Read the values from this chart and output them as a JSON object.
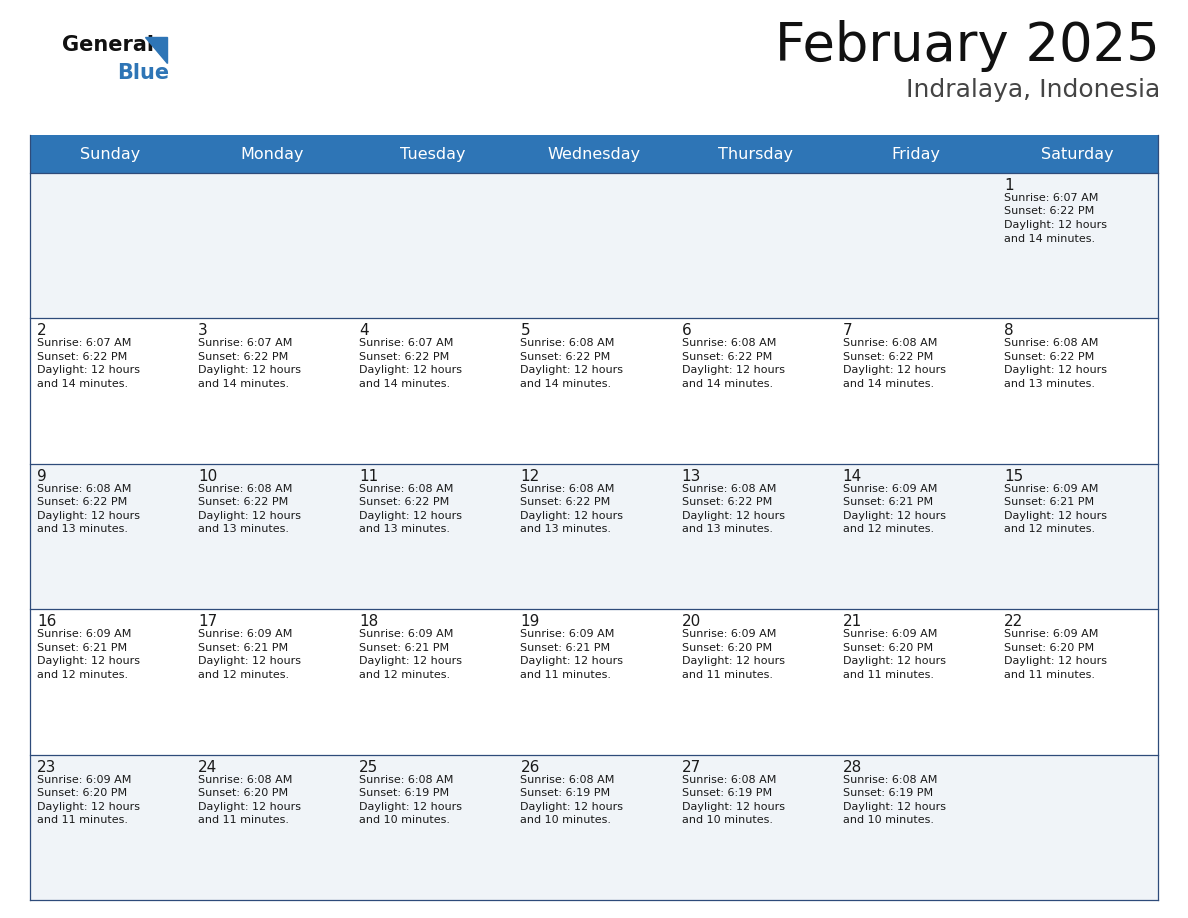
{
  "title": "February 2025",
  "subtitle": "Indralaya, Indonesia",
  "header_color": "#2E75B6",
  "header_text_color": "#FFFFFF",
  "bg_color": "#FFFFFF",
  "row_bg_light": "#F0F4F8",
  "row_bg_white": "#FFFFFF",
  "text_color": "#1a1a1a",
  "border_color": "#2E4B7A",
  "day_headers": [
    "Sunday",
    "Monday",
    "Tuesday",
    "Wednesday",
    "Thursday",
    "Friday",
    "Saturday"
  ],
  "calendar": [
    [
      null,
      null,
      null,
      null,
      null,
      null,
      {
        "day": 1,
        "sunrise": "6:07 AM",
        "sunset": "6:22 PM",
        "daylight": "12 hours and 14 minutes."
      }
    ],
    [
      {
        "day": 2,
        "sunrise": "6:07 AM",
        "sunset": "6:22 PM",
        "daylight": "12 hours and 14 minutes."
      },
      {
        "day": 3,
        "sunrise": "6:07 AM",
        "sunset": "6:22 PM",
        "daylight": "12 hours and 14 minutes."
      },
      {
        "day": 4,
        "sunrise": "6:07 AM",
        "sunset": "6:22 PM",
        "daylight": "12 hours and 14 minutes."
      },
      {
        "day": 5,
        "sunrise": "6:08 AM",
        "sunset": "6:22 PM",
        "daylight": "12 hours and 14 minutes."
      },
      {
        "day": 6,
        "sunrise": "6:08 AM",
        "sunset": "6:22 PM",
        "daylight": "12 hours and 14 minutes."
      },
      {
        "day": 7,
        "sunrise": "6:08 AM",
        "sunset": "6:22 PM",
        "daylight": "12 hours and 14 minutes."
      },
      {
        "day": 8,
        "sunrise": "6:08 AM",
        "sunset": "6:22 PM",
        "daylight": "12 hours and 13 minutes."
      }
    ],
    [
      {
        "day": 9,
        "sunrise": "6:08 AM",
        "sunset": "6:22 PM",
        "daylight": "12 hours and 13 minutes."
      },
      {
        "day": 10,
        "sunrise": "6:08 AM",
        "sunset": "6:22 PM",
        "daylight": "12 hours and 13 minutes."
      },
      {
        "day": 11,
        "sunrise": "6:08 AM",
        "sunset": "6:22 PM",
        "daylight": "12 hours and 13 minutes."
      },
      {
        "day": 12,
        "sunrise": "6:08 AM",
        "sunset": "6:22 PM",
        "daylight": "12 hours and 13 minutes."
      },
      {
        "day": 13,
        "sunrise": "6:08 AM",
        "sunset": "6:22 PM",
        "daylight": "12 hours and 13 minutes."
      },
      {
        "day": 14,
        "sunrise": "6:09 AM",
        "sunset": "6:21 PM",
        "daylight": "12 hours and 12 minutes."
      },
      {
        "day": 15,
        "sunrise": "6:09 AM",
        "sunset": "6:21 PM",
        "daylight": "12 hours and 12 minutes."
      }
    ],
    [
      {
        "day": 16,
        "sunrise": "6:09 AM",
        "sunset": "6:21 PM",
        "daylight": "12 hours and 12 minutes."
      },
      {
        "day": 17,
        "sunrise": "6:09 AM",
        "sunset": "6:21 PM",
        "daylight": "12 hours and 12 minutes."
      },
      {
        "day": 18,
        "sunrise": "6:09 AM",
        "sunset": "6:21 PM",
        "daylight": "12 hours and 12 minutes."
      },
      {
        "day": 19,
        "sunrise": "6:09 AM",
        "sunset": "6:21 PM",
        "daylight": "12 hours and 11 minutes."
      },
      {
        "day": 20,
        "sunrise": "6:09 AM",
        "sunset": "6:20 PM",
        "daylight": "12 hours and 11 minutes."
      },
      {
        "day": 21,
        "sunrise": "6:09 AM",
        "sunset": "6:20 PM",
        "daylight": "12 hours and 11 minutes."
      },
      {
        "day": 22,
        "sunrise": "6:09 AM",
        "sunset": "6:20 PM",
        "daylight": "12 hours and 11 minutes."
      }
    ],
    [
      {
        "day": 23,
        "sunrise": "6:09 AM",
        "sunset": "6:20 PM",
        "daylight": "12 hours and 11 minutes."
      },
      {
        "day": 24,
        "sunrise": "6:08 AM",
        "sunset": "6:20 PM",
        "daylight": "12 hours and 11 minutes."
      },
      {
        "day": 25,
        "sunrise": "6:08 AM",
        "sunset": "6:19 PM",
        "daylight": "12 hours and 10 minutes."
      },
      {
        "day": 26,
        "sunrise": "6:08 AM",
        "sunset": "6:19 PM",
        "daylight": "12 hours and 10 minutes."
      },
      {
        "day": 27,
        "sunrise": "6:08 AM",
        "sunset": "6:19 PM",
        "daylight": "12 hours and 10 minutes."
      },
      {
        "day": 28,
        "sunrise": "6:08 AM",
        "sunset": "6:19 PM",
        "daylight": "12 hours and 10 minutes."
      },
      null
    ]
  ],
  "figwidth": 11.88,
  "figheight": 9.18,
  "dpi": 100
}
